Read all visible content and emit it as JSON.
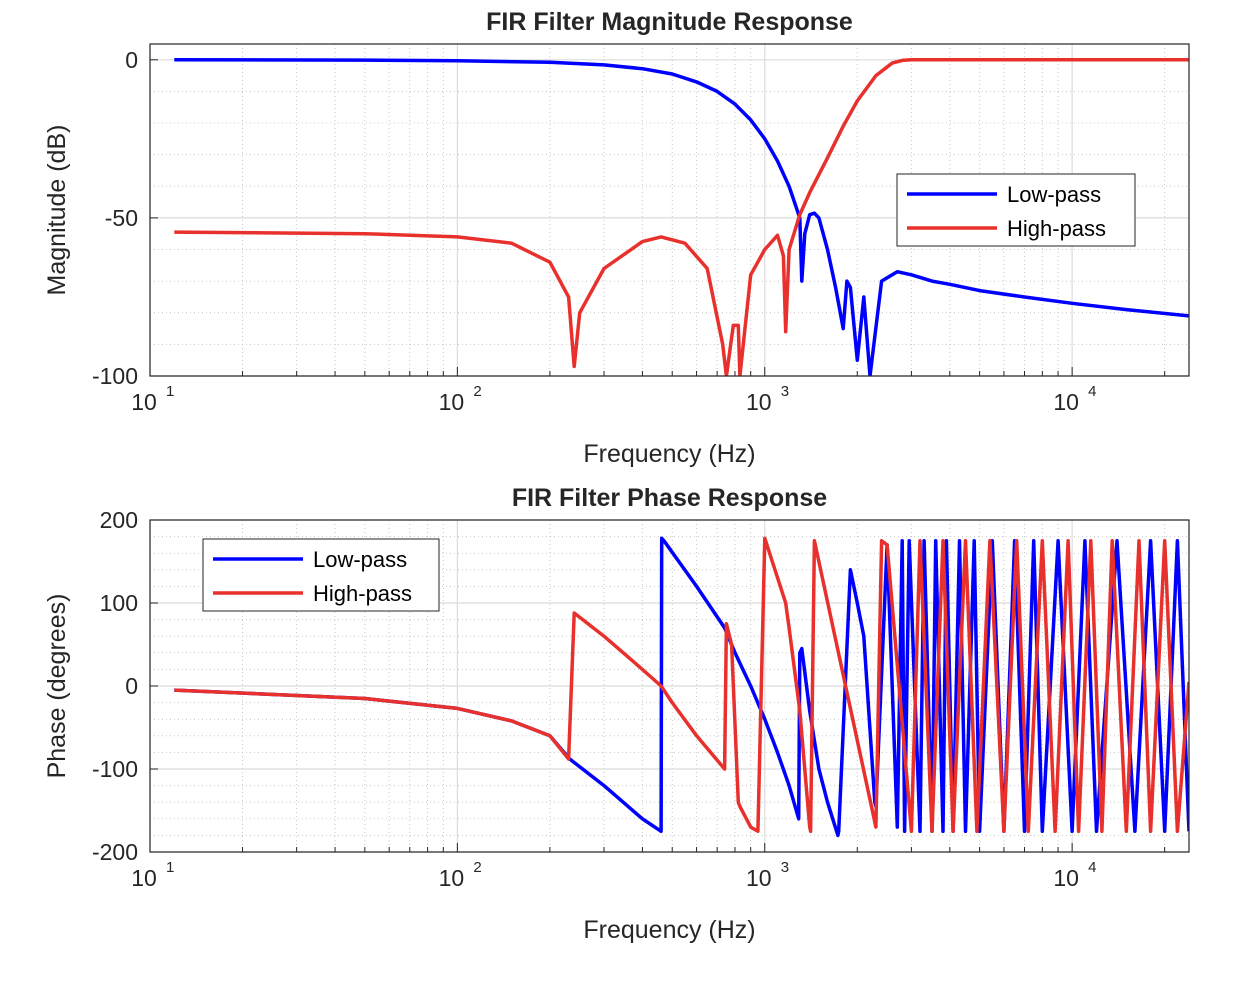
{
  "chart_data": [
    {
      "type": "line",
      "title": "FIR Filter Magnitude Response",
      "xlabel": "Frequency (Hz)",
      "ylabel": "Magnitude (dB)",
      "xscale": "log",
      "xlim": [
        10,
        24000
      ],
      "ylim": [
        -100,
        5
      ],
      "yticks": [
        0,
        -50,
        -100
      ],
      "ytick_labels": [
        "0",
        "-50",
        "-100"
      ],
      "xtick_bases": [
        "10",
        "10",
        "10",
        "10"
      ],
      "xtick_exps": [
        "1",
        "2",
        "3",
        "4"
      ],
      "grid": true,
      "legend": {
        "position": "center-right",
        "entries": [
          "Low-pass",
          "High-pass"
        ]
      },
      "series": [
        {
          "name": "Low-pass",
          "color": "#0000ff",
          "x": [
            12,
            50,
            100,
            200,
            300,
            400,
            500,
            600,
            700,
            800,
            900,
            1000,
            1100,
            1200,
            1300,
            1320,
            1350,
            1400,
            1450,
            1500,
            1600,
            1700,
            1800,
            1850,
            1900,
            2000,
            2100,
            2200,
            2400,
            2700,
            3000,
            3500,
            4000,
            5000,
            7000,
            10000,
            15000,
            24000
          ],
          "y": [
            0,
            -0.1,
            -0.3,
            -0.8,
            -1.6,
            -2.8,
            -4.5,
            -7,
            -10,
            -14,
            -19,
            -25,
            -32,
            -40,
            -50,
            -70,
            -55,
            -49,
            -48.5,
            -50,
            -60,
            -72,
            -85,
            -70,
            -72,
            -95,
            -75,
            -100,
            -70,
            -67,
            -68,
            -70,
            -71,
            -73,
            -75,
            -77,
            -79,
            -81
          ]
        },
        {
          "name": "High-pass",
          "color": "#e8302c",
          "x": [
            12,
            50,
            100,
            150,
            200,
            230,
            240,
            250,
            300,
            400,
            460,
            550,
            650,
            730,
            750,
            790,
            820,
            830,
            900,
            1000,
            1100,
            1150,
            1170,
            1200,
            1300,
            1400,
            1600,
            1800,
            2000,
            2300,
            2600,
            2800,
            3000,
            5000,
            10000,
            24000
          ],
          "y": [
            -54.5,
            -55,
            -56,
            -58,
            -64,
            -75,
            -97,
            -80,
            -66,
            -57.5,
            -56,
            -58,
            -66,
            -90,
            -100,
            -84,
            -84,
            -100,
            -68,
            -60,
            -55.5,
            -62,
            -86,
            -60,
            -49,
            -42,
            -31,
            -21,
            -13,
            -5,
            -1,
            -0.2,
            0,
            0,
            0,
            0
          ]
        }
      ]
    },
    {
      "type": "line",
      "title": "FIR Filter Phase Response",
      "xlabel": "Frequency (Hz)",
      "ylabel": "Phase (degrees)",
      "xscale": "log",
      "xlim": [
        10,
        24000
      ],
      "ylim": [
        -200,
        200
      ],
      "yticks": [
        200,
        100,
        0,
        -100,
        -200
      ],
      "ytick_labels": [
        "200",
        "100",
        "0",
        "-100",
        "-200"
      ],
      "xtick_bases": [
        "10",
        "10",
        "10",
        "10"
      ],
      "xtick_exps": [
        "1",
        "2",
        "3",
        "4"
      ],
      "grid": true,
      "legend": {
        "position": "top-left",
        "entries": [
          "Low-pass",
          "High-pass"
        ]
      },
      "series": [
        {
          "name": "Low-pass",
          "color": "#0000ff",
          "x": [
            12,
            50,
            100,
            150,
            200,
            232,
            300,
            400,
            460,
            462,
            470,
            600,
            740,
            800,
            900,
            1000,
            1100,
            1200,
            1290,
            1300,
            1320,
            1400,
            1500,
            1600,
            1730,
            1740,
            1900,
            2000,
            2100,
            2280,
            2300,
            2500,
            2700,
            2800,
            2850,
            2950,
            3200,
            3300,
            3500,
            3600,
            3800,
            3900,
            4100,
            4300,
            4500,
            4800,
            5000,
            5500,
            6000,
            6500,
            7000,
            7500,
            8000,
            9000,
            10000,
            11000,
            12000,
            14000,
            16000,
            18000,
            20000,
            22000,
            24000
          ],
          "y": [
            -5,
            -15,
            -27,
            -42,
            -60,
            -88,
            -120,
            -160,
            -175,
            178,
            175,
            120,
            70,
            40,
            0,
            -40,
            -80,
            -120,
            -160,
            40,
            45,
            -30,
            -100,
            -140,
            -180,
            -175,
            140,
            100,
            60,
            -140,
            -145,
            170,
            -170,
            175,
            -175,
            175,
            -175,
            175,
            -175,
            175,
            -175,
            175,
            -175,
            175,
            -175,
            175,
            -175,
            175,
            -175,
            175,
            -175,
            175,
            -175,
            175,
            -175,
            175,
            -175,
            175,
            -175,
            175,
            -175,
            175,
            -175
          ]
        },
        {
          "name": "High-pass",
          "color": "#e8302c",
          "x": [
            12,
            50,
            100,
            150,
            200,
            230,
            240,
            300,
            400,
            460,
            500,
            600,
            740,
            750,
            780,
            820,
            830,
            900,
            950,
            1000,
            1170,
            1180,
            1200,
            1300,
            1400,
            1410,
            1450,
            2300,
            2400,
            2500,
            3000,
            3200,
            3500,
            3800,
            4100,
            4500,
            4900,
            5400,
            6000,
            6600,
            7200,
            8000,
            8800,
            9700,
            10500,
            11500,
            12500,
            13500,
            15000,
            16500,
            18000,
            20000,
            22000,
            24000
          ],
          "y": [
            -5,
            -15,
            -27,
            -42,
            -60,
            -88,
            88,
            60,
            20,
            0,
            -20,
            -60,
            -100,
            75,
            50,
            -140,
            -145,
            -170,
            -175,
            178,
            100,
            90,
            70,
            -30,
            -170,
            -175,
            175,
            -170,
            175,
            170,
            -175,
            175,
            -175,
            175,
            -175,
            175,
            -175,
            175,
            -175,
            175,
            -175,
            175,
            -175,
            175,
            -175,
            175,
            -175,
            175,
            -175,
            175,
            -175,
            175,
            -175,
            5
          ]
        }
      ]
    }
  ]
}
